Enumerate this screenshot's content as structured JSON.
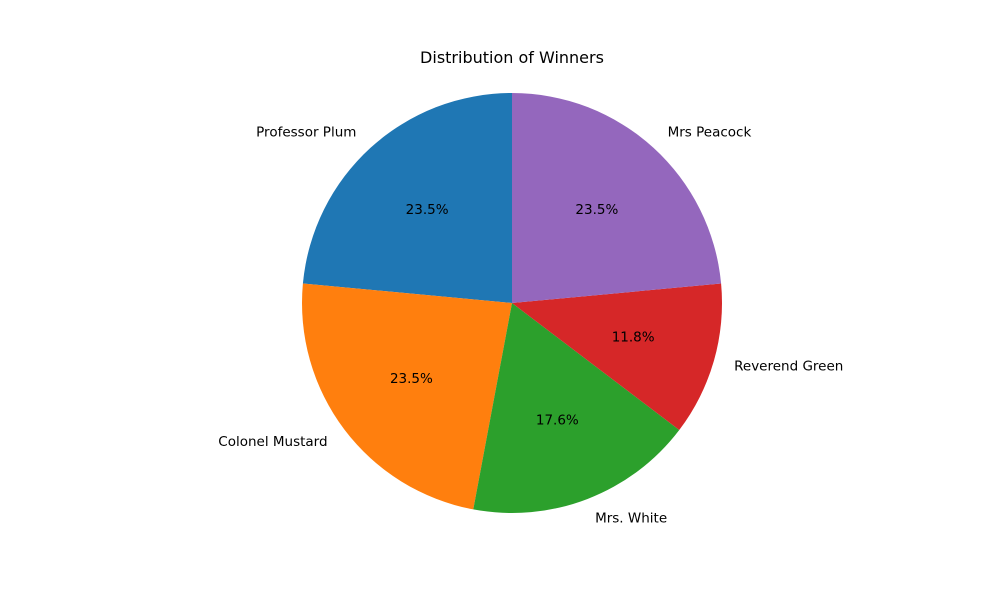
{
  "chart_data": {
    "type": "pie",
    "title": "Distribution of Winners",
    "start_angle_deg": 90,
    "direction": "counterclockwise",
    "slices": [
      {
        "label": "Professor Plum",
        "value": 23.5,
        "pct_label": "23.5%",
        "color": "#1f77b4"
      },
      {
        "label": "Colonel Mustard",
        "value": 23.5,
        "pct_label": "23.5%",
        "color": "#ff7f0e"
      },
      {
        "label": "Mrs. White",
        "value": 17.6,
        "pct_label": "17.6%",
        "color": "#2ca02c"
      },
      {
        "label": "Reverend Green",
        "value": 11.8,
        "pct_label": "11.8%",
        "color": "#d62728"
      },
      {
        "label": "Mrs Peacock",
        "value": 23.5,
        "pct_label": "23.5%",
        "color": "#9467bd"
      }
    ]
  }
}
